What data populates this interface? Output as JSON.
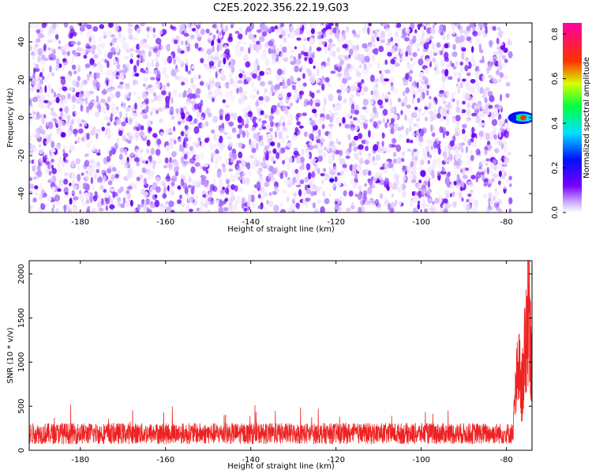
{
  "title": "C2E5.2022.356.22.19.G03",
  "chart_data": [
    {
      "type": "heatmap",
      "xlabel": "Height of straight line (km)",
      "ylabel": "Frequency (Hz)",
      "xlim": [
        -192,
        -74
      ],
      "ylim": [
        -50,
        50
      ],
      "x_ticks": [
        -180,
        -160,
        -140,
        -120,
        -100,
        -80
      ],
      "y_ticks": [
        -40,
        -20,
        0,
        20,
        40
      ],
      "colorbar": {
        "label": "Normalized spectral amplitude",
        "range": [
          0.0,
          0.85
        ],
        "ticks": [
          0.0,
          0.2,
          0.4,
          0.6,
          0.8
        ],
        "colormap": [
          "#ffffff",
          "#8000ff",
          "#0000ff",
          "#00ffff",
          "#00ff00",
          "#ffff00",
          "#ff0000",
          "#ff00ff"
        ]
      },
      "background_level": 0.08,
      "noise_region_x": [
        -192,
        -79
      ],
      "features": [
        {
          "x": -121,
          "y": -33,
          "value": 0.3
        },
        {
          "x": -78,
          "y": 0,
          "value": 0.3
        },
        {
          "x": -77,
          "y": 0,
          "value": 0.55
        },
        {
          "x": -76,
          "y": 0,
          "value": 0.7
        },
        {
          "x": -75,
          "y": -1,
          "value": 0.45
        }
      ],
      "grid": false
    },
    {
      "type": "line",
      "xlabel": "Height of straight line (km)",
      "ylabel": "SNR (10 * v/v)",
      "xlim": [
        -192,
        -74
      ],
      "ylim": [
        0,
        2150
      ],
      "x_ticks": [
        -180,
        -160,
        -140,
        -120,
        -100,
        -80
      ],
      "y_ticks": [
        0,
        500,
        1000,
        1500,
        2000
      ],
      "series": [
        {
          "color": "#ee2222",
          "noise_band": {
            "x_range": [
              -192,
              -78.5
            ],
            "mean": 190,
            "amplitude": 120,
            "max_spike": 520
          },
          "peak_points": [
            [
              -78.5,
              250
            ],
            [
              -78,
              700
            ],
            [
              -77.5,
              1000
            ],
            [
              -77,
              1150
            ],
            [
              -76.5,
              800
            ],
            [
              -76,
              1100
            ],
            [
              -75.5,
              1500
            ],
            [
              -75,
              1950
            ],
            [
              -74.7,
              2120
            ],
            [
              -74.4,
              1800
            ],
            [
              -74.1,
              1000
            ]
          ]
        }
      ],
      "grid": false
    }
  ]
}
